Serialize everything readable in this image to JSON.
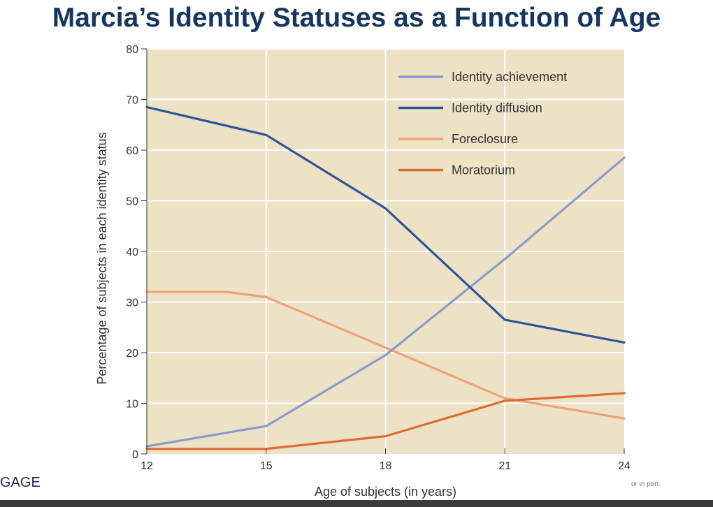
{
  "slide": {
    "title": "Marcia’s Identity Statuses as a Function of Age",
    "left_edge_text": "GAGE",
    "right_edge_text": "or in part."
  },
  "chart_data": {
    "type": "line",
    "title": "",
    "xlabel": "Age of subjects (in years)",
    "ylabel": "Percentage of subjects in each identity status",
    "x": [
      12,
      15,
      18,
      21,
      24
    ],
    "xlim": [
      12,
      24
    ],
    "ylim": [
      0,
      80
    ],
    "x_ticks": [
      "12",
      "15",
      "18",
      "21",
      "24"
    ],
    "y_ticks": [
      "0",
      "10",
      "20",
      "30",
      "40",
      "50",
      "60",
      "70",
      "80"
    ],
    "grid": true,
    "legend_position": "top-right",
    "plot_background": "#ede1c6",
    "series": [
      {
        "name": "Identity achievement",
        "color": "#8a9ccb",
        "points": [
          [
            12,
            1.5
          ],
          [
            15,
            5.5
          ],
          [
            18,
            19.5
          ],
          [
            21,
            38.5
          ],
          [
            24,
            58.5
          ]
        ]
      },
      {
        "name": "Identity diffusion",
        "color": "#2e5597",
        "points": [
          [
            12,
            68.5
          ],
          [
            15,
            63
          ],
          [
            18,
            48.5
          ],
          [
            21,
            26.5
          ],
          [
            24,
            22
          ]
        ]
      },
      {
        "name": "Foreclosure",
        "color": "#eca27a",
        "points": [
          [
            12,
            32
          ],
          [
            14,
            32
          ],
          [
            15,
            31
          ],
          [
            18,
            21
          ],
          [
            21,
            11
          ],
          [
            24,
            7
          ]
        ]
      },
      {
        "name": "Moratorium",
        "color": "#e06a35",
        "points": [
          [
            12,
            1
          ],
          [
            15,
            1
          ],
          [
            18,
            3.5
          ],
          [
            21,
            10.5
          ],
          [
            24,
            12
          ]
        ]
      }
    ]
  }
}
